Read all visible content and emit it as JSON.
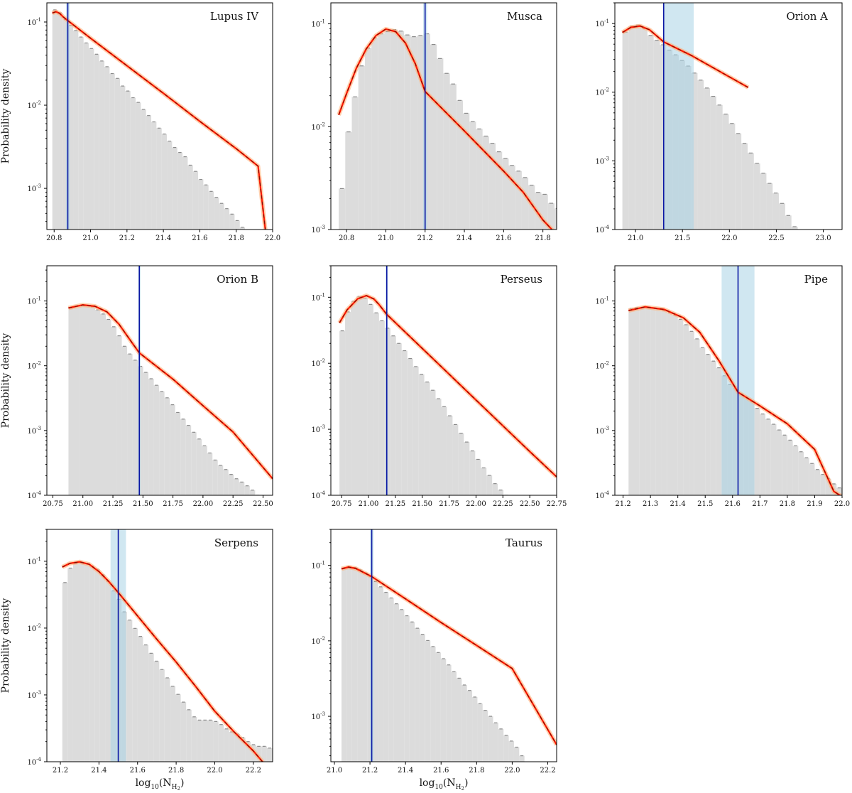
{
  "figure": {
    "ylabel": "Probability density",
    "xlabel_main": "log",
    "xlabel_sub": "10",
    "xlabel_arg": "(N",
    "xlabel_arg_sub": "H",
    "xlabel_arg_subsub": "2",
    "xlabel_close": ")"
  },
  "colors": {
    "histogram": "#dcdcdc",
    "fit": "#ff1a00",
    "fit_dash": "#7a1000",
    "fit_band": "#ffb27a",
    "threshold": "#0a16a3",
    "threshold_band": "#a9d3e6"
  },
  "chart_data": [
    {
      "type": "bar",
      "title": "Lupus IV",
      "xlabel": "",
      "ylabel": "Probability density",
      "x_ticks": [
        "20.8",
        "21.0",
        "21.2",
        "21.4",
        "21.6",
        "21.8",
        "22.0"
      ],
      "xlim": [
        20.76,
        22.0
      ],
      "ylog": true,
      "ylim": [
        0.00032,
        0.17
      ],
      "y_ticks": [
        -1,
        -2,
        -3
      ],
      "threshold": 20.875,
      "threshold_band": [
        20.865,
        20.885
      ],
      "hist_start": 20.79,
      "hist_width": 0.0286,
      "hist_values": [
        0.14,
        0.129,
        0.107,
        0.091,
        0.079,
        0.066,
        0.056,
        0.048,
        0.041,
        0.034,
        0.029,
        0.024,
        0.021,
        0.017,
        0.0148,
        0.0123,
        0.0108,
        0.0089,
        0.0075,
        0.0063,
        0.0053,
        0.0045,
        0.0037,
        0.0031,
        0.0027,
        0.0024,
        0.0019,
        0.0016,
        0.00128,
        0.0011,
        0.00092,
        0.00078,
        0.00066,
        0.00057,
        0.00049,
        0.00041,
        0.00034,
        0.0003,
        0.00025
      ],
      "fit": [
        [
          20.79,
          0.128
        ],
        [
          20.81,
          0.133
        ],
        [
          20.83,
          0.127
        ],
        [
          20.85,
          0.115
        ],
        [
          20.875,
          0.104
        ],
        [
          21.0,
          0.064
        ],
        [
          21.2,
          0.0298
        ],
        [
          21.4,
          0.0139
        ],
        [
          21.6,
          0.0064
        ],
        [
          21.8,
          0.003
        ],
        [
          21.92,
          0.00185
        ],
        [
          21.96,
          0.00032
        ]
      ]
    },
    {
      "type": "bar",
      "title": "Musca",
      "xlabel": "",
      "ylabel": "",
      "x_ticks": [
        "20.8",
        "21.0",
        "21.2",
        "21.4",
        "21.6",
        "21.8"
      ],
      "xlim": [
        20.72,
        21.87
      ],
      "ylog": true,
      "ylim": [
        0.001,
        0.16
      ],
      "y_ticks": [
        -1,
        -2,
        -3
      ],
      "threshold": 21.2,
      "threshold_band": [
        21.19,
        21.21
      ],
      "hist_start": 20.76,
      "hist_width": 0.0333,
      "hist_values": [
        0.0025,
        0.0089,
        0.0195,
        0.039,
        0.058,
        0.073,
        0.08,
        0.084,
        0.088,
        0.085,
        0.078,
        0.075,
        0.077,
        0.08,
        0.063,
        0.046,
        0.033,
        0.026,
        0.018,
        0.0135,
        0.0112,
        0.0095,
        0.0081,
        0.0069,
        0.0057,
        0.0049,
        0.0042,
        0.0037,
        0.0032,
        0.0027,
        0.0023,
        0.0022,
        0.0018,
        0.0016,
        0.0011
      ],
      "fit": [
        [
          20.76,
          0.013
        ],
        [
          20.8,
          0.021
        ],
        [
          20.85,
          0.037
        ],
        [
          20.9,
          0.057
        ],
        [
          20.95,
          0.077
        ],
        [
          21.0,
          0.089
        ],
        [
          21.05,
          0.084
        ],
        [
          21.1,
          0.065
        ],
        [
          21.15,
          0.041
        ],
        [
          21.2,
          0.022
        ],
        [
          21.4,
          0.0091
        ],
        [
          21.6,
          0.0037
        ],
        [
          21.7,
          0.0023
        ],
        [
          21.8,
          0.00124
        ],
        [
          21.85,
          0.00098
        ]
      ]
    },
    {
      "type": "bar",
      "title": "Orion A",
      "xlabel": "",
      "ylabel": "",
      "x_ticks": [
        "21.0",
        "21.5",
        "22.0",
        "22.5",
        "23.0"
      ],
      "xlim": [
        20.78,
        23.2
      ],
      "ylog": true,
      "ylim": [
        0.0001,
        0.2
      ],
      "y_ticks": [
        -1,
        -2,
        -3,
        -4
      ],
      "threshold": 21.3,
      "threshold_band": [
        21.3,
        21.62
      ],
      "hist_start": 20.86,
      "hist_width": 0.0667,
      "hist_values": [
        0.075,
        0.092,
        0.095,
        0.084,
        0.067,
        0.057,
        0.049,
        0.041,
        0.035,
        0.029,
        0.024,
        0.019,
        0.015,
        0.0115,
        0.0087,
        0.0065,
        0.0048,
        0.0035,
        0.0025,
        0.0018,
        0.0013,
        0.00092,
        0.00066,
        0.00047,
        0.00034,
        0.00024,
        0.00016,
        0.00011
      ],
      "fit": [
        [
          20.86,
          0.074
        ],
        [
          20.95,
          0.088
        ],
        [
          21.05,
          0.092
        ],
        [
          21.15,
          0.081
        ],
        [
          21.3,
          0.054
        ],
        [
          21.6,
          0.034
        ],
        [
          22.0,
          0.0167
        ],
        [
          22.2,
          0.0117
        ]
      ]
    },
    {
      "type": "bar",
      "title": "Orion B",
      "xlabel": "",
      "ylabel": "Probability density",
      "x_ticks": [
        "20.75",
        "21.00",
        "21.25",
        "21.50",
        "21.75",
        "22.00",
        "22.25",
        "22.50"
      ],
      "xlim": [
        20.7,
        22.58
      ],
      "ylog": true,
      "ylim": [
        0.0001,
        0.35
      ],
      "y_ticks": [
        -1,
        -2,
        -3,
        -4
      ],
      "threshold": 21.47,
      "threshold_band": [
        21.46,
        21.48
      ],
      "hist_start": 20.88,
      "hist_width": 0.0444,
      "hist_values": [
        0.078,
        0.083,
        0.086,
        0.085,
        0.081,
        0.073,
        0.063,
        0.052,
        0.04,
        0.029,
        0.02,
        0.0152,
        0.0122,
        0.0098,
        0.0079,
        0.0063,
        0.005,
        0.004,
        0.0032,
        0.0025,
        0.0019,
        0.0015,
        0.0012,
        0.00094,
        0.00074,
        0.00058,
        0.00045,
        0.00035,
        0.00029,
        0.00025,
        0.00021,
        0.00018,
        0.00016,
        0.00014,
        0.00012,
        0.0001,
        8.5e-05,
        7e-05
      ],
      "fit": [
        [
          20.88,
          0.078
        ],
        [
          21.0,
          0.087
        ],
        [
          21.1,
          0.083
        ],
        [
          21.2,
          0.068
        ],
        [
          21.3,
          0.044
        ],
        [
          21.4,
          0.024
        ],
        [
          21.47,
          0.0158
        ],
        [
          21.75,
          0.0062
        ],
        [
          22.0,
          0.00242
        ],
        [
          22.25,
          0.00095
        ],
        [
          22.58,
          0.00018
        ]
      ]
    },
    {
      "type": "bar",
      "title": "Perseus",
      "xlabel": "",
      "ylabel": "",
      "x_ticks": [
        "20.75",
        "21.00",
        "21.25",
        "21.50",
        "21.75",
        "22.00",
        "22.25",
        "22.50",
        "22.75"
      ],
      "xlim": [
        20.65,
        22.75
      ],
      "ylog": true,
      "ylim": [
        0.0001,
        0.3
      ],
      "y_ticks": [
        -1,
        -2,
        -3,
        -4
      ],
      "threshold": 21.17,
      "threshold_band": [
        21.16,
        21.18
      ],
      "hist_start": 20.73,
      "hist_width": 0.0526,
      "hist_values": [
        0.031,
        0.06,
        0.087,
        0.103,
        0.097,
        0.078,
        0.058,
        0.044,
        0.034,
        0.026,
        0.02,
        0.0155,
        0.0118,
        0.0089,
        0.0068,
        0.0052,
        0.0039,
        0.0029,
        0.0022,
        0.0016,
        0.00118,
        0.00087,
        0.00064,
        0.00047,
        0.00035,
        0.00026,
        0.0002,
        0.00015,
        0.00012,
        0.0001,
        9e-05,
        8e-05
      ],
      "fit": [
        [
          20.73,
          0.041
        ],
        [
          20.8,
          0.064
        ],
        [
          20.9,
          0.095
        ],
        [
          20.98,
          0.106
        ],
        [
          21.05,
          0.094
        ],
        [
          21.1,
          0.077
        ],
        [
          21.17,
          0.055
        ],
        [
          21.5,
          0.0168
        ],
        [
          22.0,
          0.00278
        ],
        [
          22.5,
          0.00046
        ],
        [
          22.75,
          0.00019
        ]
      ]
    },
    {
      "type": "bar",
      "title": "Pipe",
      "xlabel": "",
      "ylabel": "",
      "x_ticks": [
        "21.2",
        "21.3",
        "21.4",
        "21.5",
        "21.6",
        "21.7",
        "21.8",
        "21.9",
        "22.0"
      ],
      "xlim": [
        21.17,
        22.0
      ],
      "ylog": true,
      "ylim": [
        0.0001,
        0.35
      ],
      "y_ticks": [
        -1,
        -2,
        -3,
        -4
      ],
      "threshold": 21.62,
      "threshold_band": [
        21.56,
        21.68
      ],
      "hist_start": 21.22,
      "hist_width": 0.02,
      "hist_values": [
        0.077,
        0.079,
        0.08,
        0.08,
        0.078,
        0.075,
        0.071,
        0.066,
        0.06,
        0.052,
        0.043,
        0.034,
        0.026,
        0.019,
        0.015,
        0.0118,
        0.0093,
        0.007,
        0.0051,
        0.0045,
        0.0037,
        0.0033,
        0.0028,
        0.0022,
        0.0018,
        0.0015,
        0.00125,
        0.00102,
        0.00085,
        0.00071,
        0.00058,
        0.00047,
        0.00038,
        0.00031,
        0.00025,
        0.00021,
        0.00018,
        0.00015,
        0.00013
      ],
      "fit": [
        [
          21.22,
          0.071
        ],
        [
          21.28,
          0.081
        ],
        [
          21.35,
          0.074
        ],
        [
          21.42,
          0.055
        ],
        [
          21.48,
          0.033
        ],
        [
          21.55,
          0.012
        ],
        [
          21.62,
          0.0039
        ],
        [
          21.7,
          0.0024
        ],
        [
          21.8,
          0.00127
        ],
        [
          21.9,
          0.00051
        ],
        [
          21.97,
          0.000115
        ],
        [
          22.0,
          9.5e-05
        ]
      ]
    },
    {
      "type": "bar",
      "title": "Serpens",
      "xlabel": "log10(NH2)",
      "ylabel": "Probability density",
      "x_ticks": [
        "21.2",
        "21.4",
        "21.6",
        "21.8",
        "22.0",
        "22.2"
      ],
      "xlim": [
        21.13,
        22.3
      ],
      "ylog": true,
      "ylim": [
        0.0001,
        0.3
      ],
      "y_ticks": [
        -1,
        -2,
        -3,
        -4
      ],
      "threshold": 21.5,
      "threshold_band": [
        21.46,
        21.54
      ],
      "hist_start": 21.21,
      "hist_width": 0.0279,
      "hist_values": [
        0.048,
        0.079,
        0.093,
        0.095,
        0.092,
        0.085,
        0.076,
        0.063,
        0.05,
        0.036,
        0.027,
        0.0175,
        0.0132,
        0.0099,
        0.0075,
        0.0056,
        0.0042,
        0.0032,
        0.0024,
        0.0018,
        0.00135,
        0.00102,
        0.00078,
        0.0006,
        0.00047,
        0.00042,
        0.00042,
        0.00042,
        0.0004,
        0.00036,
        0.00031,
        0.00028,
        0.00026,
        0.00023,
        0.0002,
        0.00018,
        0.00017,
        0.00017,
        0.00016
      ],
      "fit": [
        [
          21.21,
          0.082
        ],
        [
          21.25,
          0.093
        ],
        [
          21.3,
          0.098
        ],
        [
          21.35,
          0.09
        ],
        [
          21.4,
          0.07
        ],
        [
          21.45,
          0.05
        ],
        [
          21.5,
          0.034
        ],
        [
          21.7,
          0.0068
        ],
        [
          21.8,
          0.0031
        ],
        [
          21.9,
          0.00135
        ],
        [
          22.0,
          0.00057
        ],
        [
          22.1,
          0.00028
        ],
        [
          22.2,
          0.000145
        ],
        [
          22.25,
          9.8e-05
        ]
      ]
    },
    {
      "type": "bar",
      "title": "Taurus",
      "xlabel": "log10(NH2)",
      "ylabel": "",
      "x_ticks": [
        "21.0",
        "21.2",
        "21.4",
        "21.6",
        "21.8",
        "22.0",
        "22.2"
      ],
      "xlim": [
        20.98,
        22.25
      ],
      "ylog": true,
      "ylim": [
        0.00025,
        0.3
      ],
      "y_ticks": [
        -1,
        -2,
        -3
      ],
      "threshold": 21.21,
      "threshold_band": [
        21.2,
        21.22
      ],
      "hist_start": 21.04,
      "hist_width": 0.0294,
      "hist_values": [
        0.091,
        0.095,
        0.094,
        0.088,
        0.08,
        0.071,
        0.061,
        0.052,
        0.044,
        0.037,
        0.031,
        0.026,
        0.0215,
        0.0178,
        0.0147,
        0.0122,
        0.0101,
        0.0084,
        0.007,
        0.0058,
        0.0048,
        0.0039,
        0.0032,
        0.0026,
        0.0022,
        0.0018,
        0.00147,
        0.0012,
        0.001,
        0.00082,
        0.00068,
        0.00056,
        0.00047,
        0.00039,
        0.0003,
        0.00024
      ],
      "fit": [
        [
          21.04,
          0.09
        ],
        [
          21.08,
          0.095
        ],
        [
          21.12,
          0.091
        ],
        [
          21.21,
          0.071
        ],
        [
          21.4,
          0.036
        ],
        [
          21.6,
          0.0175
        ],
        [
          21.8,
          0.0087
        ],
        [
          22.0,
          0.0043
        ],
        [
          22.25,
          0.00042
        ]
      ]
    }
  ]
}
